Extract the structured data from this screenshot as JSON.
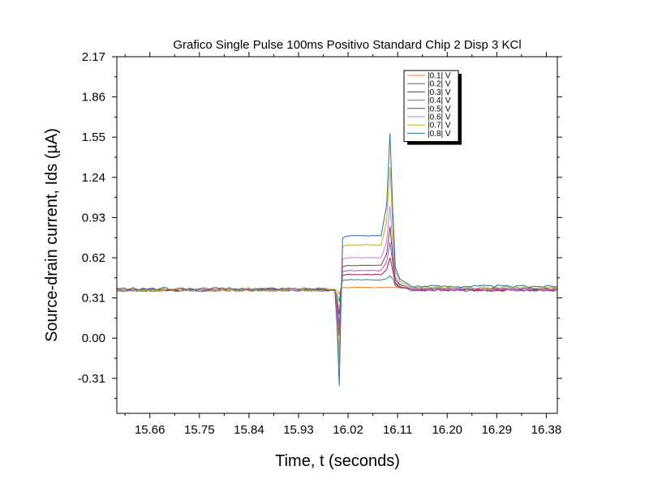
{
  "chart_data": {
    "type": "line",
    "title": "Grafico Single Pulse 100ms Positivo Standard Chip 2 Disp 3 KCl",
    "xlabel": "Time, t (seconds)",
    "ylabel": "Source-drain current, Ids (µA)",
    "xlim": [
      15.6,
      16.4
    ],
    "ylim": [
      -0.58,
      2.17
    ],
    "x_ticks": [
      15.66,
      15.75,
      15.84,
      15.93,
      16.02,
      16.11,
      16.2,
      16.29,
      16.38
    ],
    "x_tick_labels": [
      "15.66",
      "15.75",
      "15.84",
      "15.93",
      "16.02",
      "16.11",
      "16.20",
      "16.29",
      "16.38"
    ],
    "y_ticks": [
      -0.31,
      0.0,
      0.31,
      0.62,
      0.93,
      1.24,
      1.55,
      1.86,
      2.17
    ],
    "y_tick_labels": [
      "-0.31",
      "0.00",
      "0.31",
      "0.62",
      "0.93",
      "1.24",
      "1.55",
      "1.86",
      "2.17"
    ],
    "legend_position": "top-right",
    "grid": false,
    "series": [
      {
        "name": "|0.1| V",
        "color": "#f07a1a",
        "baseline": 0.38,
        "dip": 0.34,
        "plateau": 0.39,
        "peak": 0.39,
        "tail": 0.39
      },
      {
        "name": "|0.2| V",
        "color": "#2e8b57",
        "baseline": 0.37,
        "dip": 0.28,
        "plateau": 0.45,
        "peak": 0.48,
        "tail": 0.38
      },
      {
        "name": "|0.3| V",
        "color": "#b0184b",
        "baseline": 0.37,
        "dip": 0.18,
        "plateau": 0.49,
        "peak": 0.62,
        "tail": 0.38
      },
      {
        "name": "|0.4| V",
        "color": "#9b59b6",
        "baseline": 0.37,
        "dip": 0.1,
        "plateau": 0.52,
        "peak": 0.74,
        "tail": 0.38
      },
      {
        "name": "|0.5| V",
        "color": "#7d3c5a",
        "baseline": 0.37,
        "dip": 0.02,
        "plateau": 0.56,
        "peak": 0.86,
        "tail": 0.39
      },
      {
        "name": "|0.6| V",
        "color": "#c77dd1",
        "baseline": 0.37,
        "dip": -0.1,
        "plateau": 0.62,
        "peak": 1.02,
        "tail": 0.39
      },
      {
        "name": "|0.7| V",
        "color": "#b5b320",
        "baseline": 0.37,
        "dip": -0.2,
        "plateau": 0.72,
        "peak": 1.32,
        "tail": 0.4
      },
      {
        "name": "|0.8| V",
        "color": "#2a6f9e",
        "baseline": 0.38,
        "dip": -0.37,
        "plateau": 0.79,
        "peak": 1.58,
        "tail": 0.41
      }
    ]
  }
}
